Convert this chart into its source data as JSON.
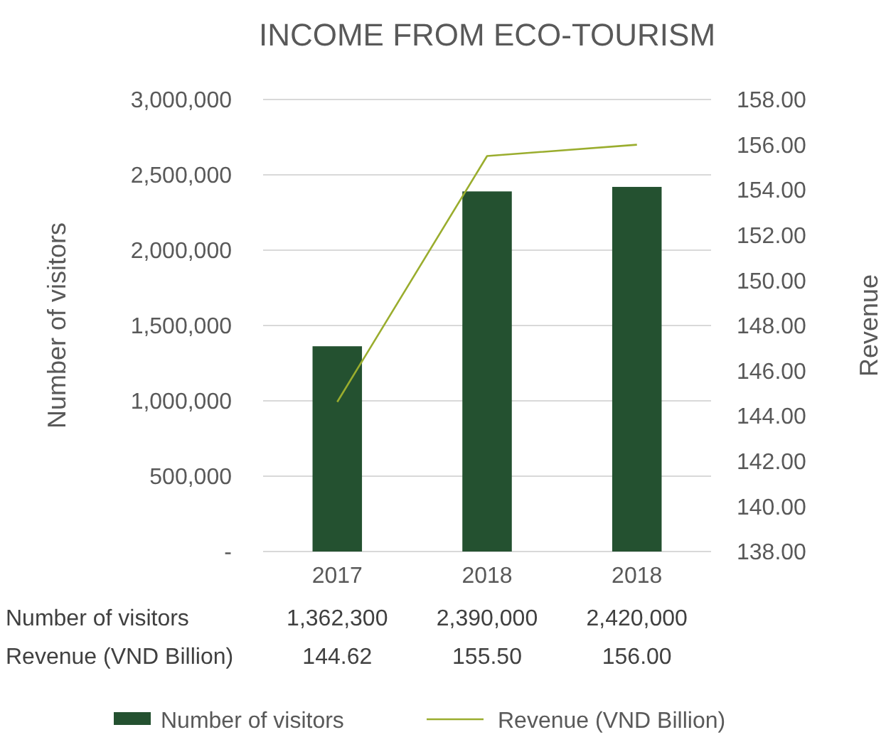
{
  "chart_data": {
    "type": "bar",
    "title": "INCOME FROM ECO-TOURISM",
    "ylabel": "Number of visitors",
    "y2label": "Revenue",
    "categories": [
      "2017",
      "2018",
      "2018"
    ],
    "series": [
      {
        "name": "Number of visitors",
        "color": "#245130",
        "values": [
          1362300,
          2390000,
          2420000
        ],
        "value_labels": [
          "1,362,300",
          "2,390,000",
          "2,420,000"
        ]
      },
      {
        "name": "Revenue (VND Billion)",
        "type": "line",
        "axis": "y2",
        "color": "#9aad2e",
        "values": [
          144.62,
          155.5,
          156.0
        ],
        "value_labels": [
          "144.62",
          "155.50",
          "156.00"
        ]
      }
    ],
    "ylim": [
      0,
      3000000
    ],
    "yticks": [
      {
        "value": 0,
        "label": "-"
      },
      {
        "value": 500000,
        "label": "500,000"
      },
      {
        "value": 1000000,
        "label": "1,000,000"
      },
      {
        "value": 1500000,
        "label": "1,500,000"
      },
      {
        "value": 2000000,
        "label": "2,000,000"
      },
      {
        "value": 2500000,
        "label": "2,500,000"
      },
      {
        "value": 3000000,
        "label": "3,000,000"
      }
    ],
    "y2lim": [
      138,
      158
    ],
    "y2ticks": [
      {
        "value": 138,
        "label": "138.00"
      },
      {
        "value": 140,
        "label": "140.00"
      },
      {
        "value": 142,
        "label": "142.00"
      },
      {
        "value": 144,
        "label": "144.00"
      },
      {
        "value": 146,
        "label": "146.00"
      },
      {
        "value": 148,
        "label": "148.00"
      },
      {
        "value": 150,
        "label": "150.00"
      },
      {
        "value": 152,
        "label": "152.00"
      },
      {
        "value": 154,
        "label": "154.00"
      },
      {
        "value": 156,
        "label": "156.00"
      },
      {
        "value": 158,
        "label": "158.00"
      }
    ],
    "grid": "y",
    "legend": "bottom",
    "marker": "none",
    "line_style": "solid"
  }
}
